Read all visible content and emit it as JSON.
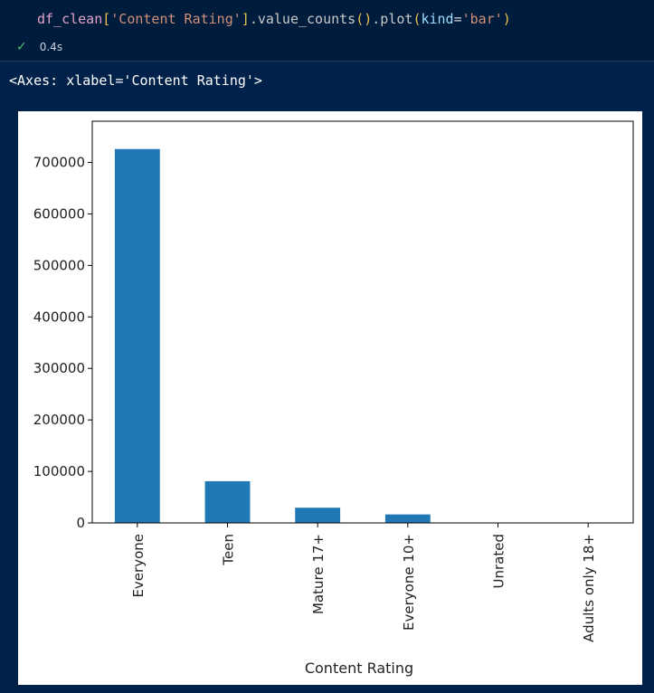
{
  "cell": {
    "code": {
      "var": "df_clean",
      "open_bracket": "[",
      "key": "'Content Rating'",
      "close_bracket": "]",
      "method1": ".value_counts",
      "parens1": "()",
      "method2": ".plot",
      "open_paren": "(",
      "param": "kind",
      "eq": "=",
      "param_value": "'bar'",
      "close_paren": ")"
    },
    "status": {
      "icon": "check-icon",
      "duration": "0.4s"
    }
  },
  "output": {
    "repr": "<Axes: xlabel='Content Rating'>"
  },
  "chart_data": {
    "type": "bar",
    "categories": [
      "Everyone",
      "Teen",
      "Mature 17+",
      "Everyone 10+",
      "Unrated",
      "Adults only 18+"
    ],
    "values": [
      726000,
      81000,
      29500,
      16500,
      500,
      200
    ],
    "xlabel": "Content Rating",
    "ylabel": "",
    "ylim": [
      0,
      780000
    ],
    "yticks": [
      0,
      100000,
      200000,
      300000,
      400000,
      500000,
      600000,
      700000
    ],
    "bar_color": "#1f77b4",
    "grid": false
  }
}
